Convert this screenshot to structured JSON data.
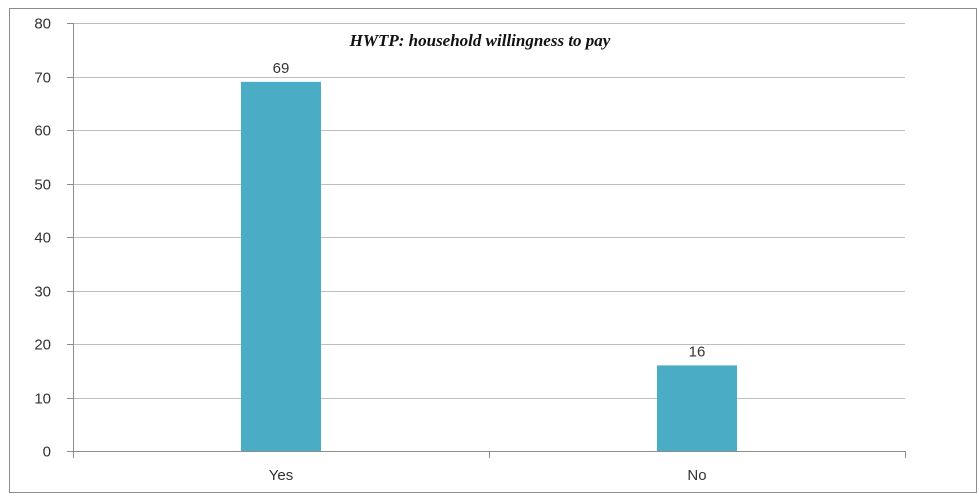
{
  "chart_data": {
    "type": "bar",
    "title": "HWTP: household willingness to pay",
    "categories": [
      "Yes",
      "No"
    ],
    "values": [
      69,
      16
    ],
    "data_labels": [
      "69",
      "16"
    ],
    "xlabel": "",
    "ylabel": "",
    "ylim": [
      0,
      80
    ],
    "yticks": [
      "0",
      "10",
      "20",
      "30",
      "40",
      "50",
      "60",
      "70",
      "80"
    ],
    "grid": true,
    "legend": "none",
    "bar_color": "#4bacc6",
    "gridline_color": "#bfbfbf",
    "frame_color": "#8c8c8c"
  }
}
